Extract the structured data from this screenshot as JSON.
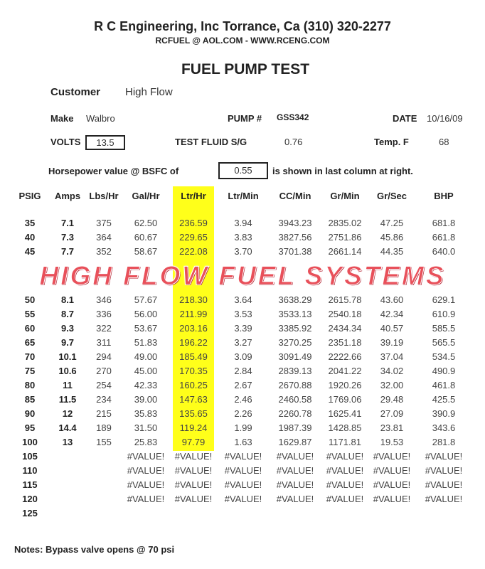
{
  "header": {
    "company_line": "R C Engineering, Inc  Torrance,  Ca  (310) 320-2277",
    "contact_line": "RCFUEL @ AOL.COM -  WWW.RCENG.COM",
    "title": "FUEL PUMP TEST"
  },
  "info": {
    "customer_label": "Customer",
    "customer_value": "High Flow",
    "make_label": "Make",
    "make_value": "Walbro",
    "pump_label": "PUMP #",
    "pump_value": "GSS342",
    "date_label": "DATE",
    "date_value": "10/16/09",
    "volts_label": "VOLTS",
    "volts_value": "13.5",
    "fluid_label": "TEST FLUID  S/G",
    "fluid_value": "0.76",
    "temp_label": "Temp.  F",
    "temp_value": "68",
    "hp_label": "Horsepower value @  BSFC of",
    "bsfc_value": "0.55",
    "hp_suffix": "is shown in last column at right."
  },
  "watermark": "HIGH FLOW FUEL SYSTEMS",
  "highlight_color": "#ffff1a",
  "table": {
    "columns": [
      "PSIG",
      "Amps",
      "Lbs/Hr",
      "Gal/Hr",
      "Ltr/Hr",
      "Ltr/Min",
      "CC/Min",
      "Gr/Min",
      "Gr/Sec",
      "BHP"
    ],
    "rows": [
      [
        "35",
        "7.1",
        "375",
        "62.50",
        "236.59",
        "3.94",
        "3943.23",
        "2835.02",
        "47.25",
        "681.8"
      ],
      [
        "40",
        "7.3",
        "364",
        "60.67",
        "229.65",
        "3.83",
        "3827.56",
        "2751.86",
        "45.86",
        "661.8"
      ],
      [
        "45",
        "7.7",
        "352",
        "58.67",
        "222.08",
        "3.70",
        "3701.38",
        "2661.14",
        "44.35",
        "640.0"
      ],
      [
        "50",
        "8.1",
        "346",
        "57.67",
        "218.30",
        "3.64",
        "3638.29",
        "2615.78",
        "43.60",
        "629.1"
      ],
      [
        "55",
        "8.7",
        "336",
        "56.00",
        "211.99",
        "3.53",
        "3533.13",
        "2540.18",
        "42.34",
        "610.9"
      ],
      [
        "60",
        "9.3",
        "322",
        "53.67",
        "203.16",
        "3.39",
        "3385.92",
        "2434.34",
        "40.57",
        "585.5"
      ],
      [
        "65",
        "9.7",
        "311",
        "51.83",
        "196.22",
        "3.27",
        "3270.25",
        "2351.18",
        "39.19",
        "565.5"
      ],
      [
        "70",
        "10.1",
        "294",
        "49.00",
        "185.49",
        "3.09",
        "3091.49",
        "2222.66",
        "37.04",
        "534.5"
      ],
      [
        "75",
        "10.6",
        "270",
        "45.00",
        "170.35",
        "2.84",
        "2839.13",
        "2041.22",
        "34.02",
        "490.9"
      ],
      [
        "80",
        "11",
        "254",
        "42.33",
        "160.25",
        "2.67",
        "2670.88",
        "1920.26",
        "32.00",
        "461.8"
      ],
      [
        "85",
        "11.5",
        "234",
        "39.00",
        "147.63",
        "2.46",
        "2460.58",
        "1769.06",
        "29.48",
        "425.5"
      ],
      [
        "90",
        "12",
        "215",
        "35.83",
        "135.65",
        "2.26",
        "2260.78",
        "1625.41",
        "27.09",
        "390.9"
      ],
      [
        "95",
        "14.4",
        "189",
        "31.50",
        "119.24",
        "1.99",
        "1987.39",
        "1428.85",
        "23.81",
        "343.6"
      ],
      [
        "100",
        "13",
        "155",
        "25.83",
        "97.79",
        "1.63",
        "1629.87",
        "1171.81",
        "19.53",
        "281.8"
      ],
      [
        "105",
        "",
        "",
        "#VALUE!",
        "#VALUE!",
        "#VALUE!",
        "#VALUE!",
        "#VALUE!",
        "#VALUE!",
        "#VALUE!"
      ],
      [
        "110",
        "",
        "",
        "#VALUE!",
        "#VALUE!",
        "#VALUE!",
        "#VALUE!",
        "#VALUE!",
        "#VALUE!",
        "#VALUE!"
      ],
      [
        "115",
        "",
        "",
        "#VALUE!",
        "#VALUE!",
        "#VALUE!",
        "#VALUE!",
        "#VALUE!",
        "#VALUE!",
        "#VALUE!"
      ],
      [
        "120",
        "",
        "",
        "#VALUE!",
        "#VALUE!",
        "#VALUE!",
        "#VALUE!",
        "#VALUE!",
        "#VALUE!",
        "#VALUE!"
      ],
      [
        "125",
        "",
        "",
        "",
        "",
        "",
        "",
        "",
        "",
        ""
      ]
    ]
  },
  "notes": "Notes:  Bypass valve opens @ 70 psi"
}
